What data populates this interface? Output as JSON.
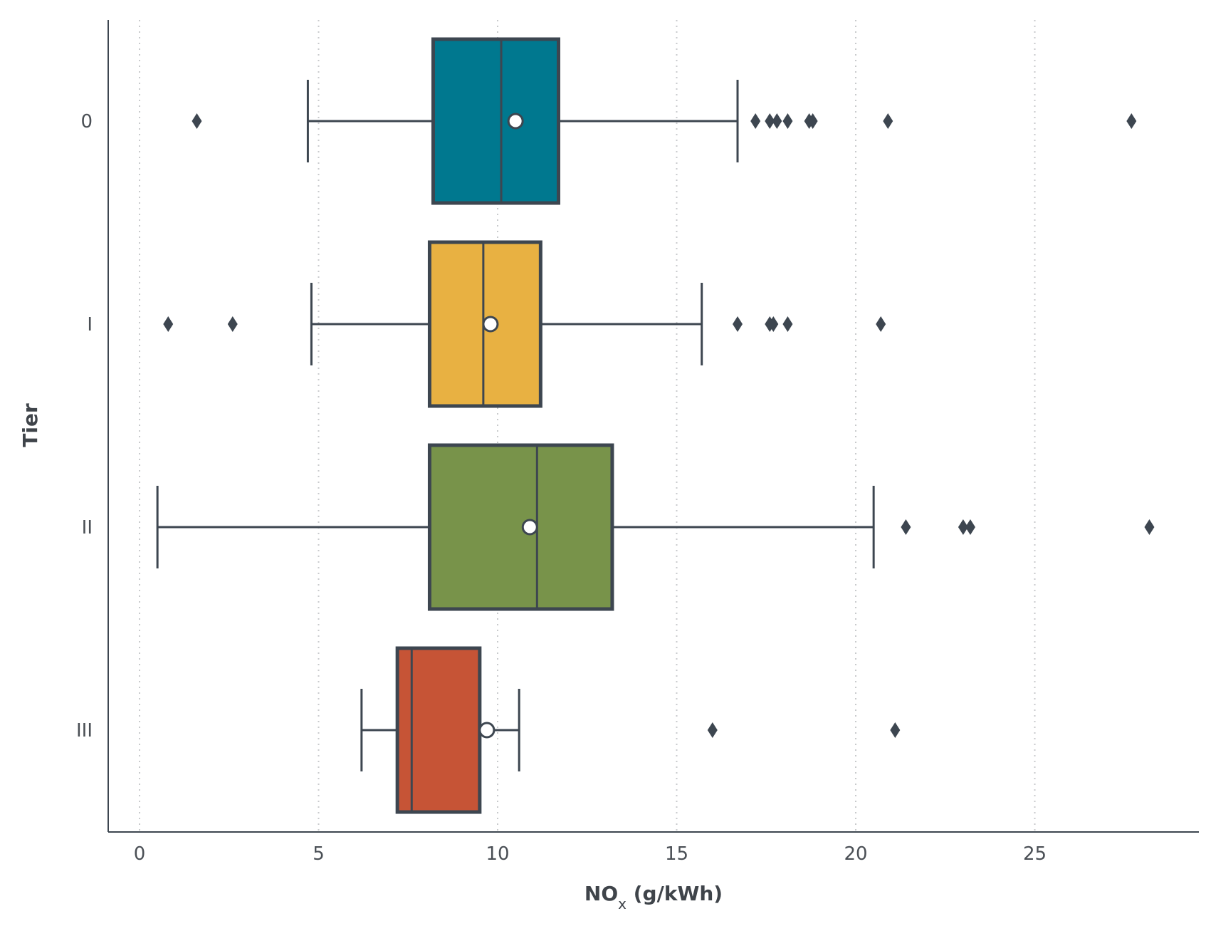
{
  "chart_data": {
    "type": "boxplot",
    "orientation": "horizontal",
    "title": "",
    "xlabel": "NO",
    "xlabel_subscript": "x",
    "xlabel_suffix": " (g/kWh)",
    "ylabel": "Tier",
    "xlim": [
      -0.9,
      29.3
    ],
    "xticks": [
      0,
      5,
      10,
      15,
      20,
      25
    ],
    "xtick_labels": [
      "0",
      "5",
      "10",
      "15",
      "20",
      "25"
    ],
    "grid": "x-dotted",
    "colors": {
      "outline": "#3d4650",
      "grid": "#c8cacc",
      "mean_fill": "#ffffff"
    },
    "categories": [
      "0",
      "I",
      "II",
      "III"
    ],
    "series": [
      {
        "category": "0",
        "color": "#00788f",
        "whisker_low": 4.7,
        "q1": 8.2,
        "median": 10.1,
        "q3": 11.7,
        "whisker_high": 16.7,
        "mean": 10.5,
        "outliers": [
          1.6,
          17.2,
          17.6,
          17.8,
          18.1,
          18.7,
          18.8,
          20.9,
          27.7
        ]
      },
      {
        "category": "I",
        "color": "#e8b142",
        "whisker_low": 4.8,
        "q1": 8.1,
        "median": 9.6,
        "q3": 11.2,
        "whisker_high": 15.7,
        "mean": 9.8,
        "outliers": [
          0.8,
          2.6,
          16.7,
          17.6,
          17.7,
          18.1,
          20.7
        ]
      },
      {
        "category": "II",
        "color": "#78934a",
        "whisker_low": 0.5,
        "q1": 8.1,
        "median": 11.1,
        "q3": 13.2,
        "whisker_high": 20.5,
        "mean": 10.9,
        "outliers": [
          21.4,
          23.0,
          23.2,
          28.2
        ]
      },
      {
        "category": "III",
        "color": "#c65436",
        "whisker_low": 6.2,
        "q1": 7.2,
        "median": 7.6,
        "q3": 9.5,
        "whisker_high": 10.6,
        "mean": 9.7,
        "outliers": [
          16.0,
          21.1
        ]
      }
    ]
  }
}
